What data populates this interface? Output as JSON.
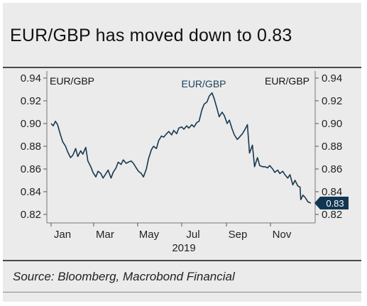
{
  "title": "EUR/GBP has moved down to 0.83",
  "source": "Source: Bloomberg, Macrobond Financial",
  "colors": {
    "line": "#17384f",
    "background": "#ebebeb",
    "text": "#222222"
  },
  "chart_data": {
    "type": "line",
    "title": "EUR/GBP has moved down to 0.83",
    "xlabel": "2019",
    "ylabel": "",
    "ylim": [
      0.81,
      0.94
    ],
    "yticks": [
      "0.94",
      "0.92",
      "0.90",
      "0.88",
      "0.86",
      "0.84",
      "0.82"
    ],
    "xticks": [
      "Jan",
      "Mar",
      "May",
      "Jul",
      "Sep",
      "Nov"
    ],
    "series_labels": {
      "left": "EUR/GBP",
      "center": "EUR/GBP",
      "right": "EUR/GBP"
    },
    "last_value_label": "0.83",
    "grid": false,
    "series": [
      {
        "name": "EUR/GBP",
        "x": [
          "2019-01-01",
          "2019-01-04",
          "2019-01-07",
          "2019-01-10",
          "2019-01-14",
          "2019-01-17",
          "2019-01-21",
          "2019-01-24",
          "2019-01-28",
          "2019-01-31",
          "2019-02-04",
          "2019-02-07",
          "2019-02-11",
          "2019-02-14",
          "2019-02-18",
          "2019-02-21",
          "2019-02-25",
          "2019-02-28",
          "2019-03-04",
          "2019-03-07",
          "2019-03-11",
          "2019-03-14",
          "2019-03-18",
          "2019-03-21",
          "2019-03-25",
          "2019-03-28",
          "2019-04-01",
          "2019-04-04",
          "2019-04-08",
          "2019-04-11",
          "2019-04-15",
          "2019-04-18",
          "2019-04-22",
          "2019-04-25",
          "2019-04-29",
          "2019-05-02",
          "2019-05-06",
          "2019-05-09",
          "2019-05-13",
          "2019-05-16",
          "2019-05-20",
          "2019-05-23",
          "2019-05-27",
          "2019-05-30",
          "2019-06-03",
          "2019-06-06",
          "2019-06-10",
          "2019-06-13",
          "2019-06-17",
          "2019-06-20",
          "2019-06-24",
          "2019-06-27",
          "2019-07-01",
          "2019-07-04",
          "2019-07-08",
          "2019-07-11",
          "2019-07-15",
          "2019-07-18",
          "2019-07-22",
          "2019-07-25",
          "2019-07-29",
          "2019-08-01",
          "2019-08-05",
          "2019-08-08",
          "2019-08-12",
          "2019-08-15",
          "2019-08-19",
          "2019-08-22",
          "2019-08-26",
          "2019-08-29",
          "2019-09-02",
          "2019-09-05",
          "2019-09-09",
          "2019-09-12",
          "2019-09-16",
          "2019-09-19",
          "2019-09-23",
          "2019-09-26",
          "2019-09-30",
          "2019-10-03",
          "2019-10-07",
          "2019-10-10",
          "2019-10-14",
          "2019-10-17",
          "2019-10-21",
          "2019-10-24",
          "2019-10-28",
          "2019-10-31",
          "2019-11-04",
          "2019-11-07",
          "2019-11-11",
          "2019-11-14",
          "2019-11-18",
          "2019-11-21",
          "2019-11-25",
          "2019-11-28",
          "2019-12-02",
          "2019-12-05",
          "2019-12-09",
          "2019-12-12",
          "2019-12-13",
          "2019-12-16",
          "2019-12-19",
          "2019-12-23",
          "2019-12-27"
        ],
        "values": [
          0.9,
          0.898,
          0.902,
          0.899,
          0.89,
          0.884,
          0.88,
          0.875,
          0.87,
          0.872,
          0.878,
          0.871,
          0.876,
          0.873,
          0.879,
          0.867,
          0.862,
          0.857,
          0.853,
          0.858,
          0.856,
          0.852,
          0.856,
          0.859,
          0.852,
          0.857,
          0.861,
          0.866,
          0.864,
          0.868,
          0.865,
          0.866,
          0.867,
          0.865,
          0.861,
          0.858,
          0.856,
          0.853,
          0.86,
          0.869,
          0.877,
          0.88,
          0.878,
          0.885,
          0.889,
          0.888,
          0.891,
          0.893,
          0.89,
          0.894,
          0.891,
          0.896,
          0.897,
          0.895,
          0.898,
          0.896,
          0.899,
          0.897,
          0.901,
          0.902,
          0.912,
          0.917,
          0.919,
          0.924,
          0.927,
          0.922,
          0.913,
          0.906,
          0.91,
          0.907,
          0.9,
          0.903,
          0.895,
          0.89,
          0.886,
          0.888,
          0.891,
          0.894,
          0.899,
          0.874,
          0.881,
          0.862,
          0.87,
          0.863,
          0.862,
          0.862,
          0.861,
          0.863,
          0.86,
          0.857,
          0.859,
          0.856,
          0.858,
          0.855,
          0.852,
          0.855,
          0.846,
          0.85,
          0.845,
          0.844,
          0.833,
          0.837,
          0.835,
          0.831,
          0.83
        ]
      }
    ]
  }
}
